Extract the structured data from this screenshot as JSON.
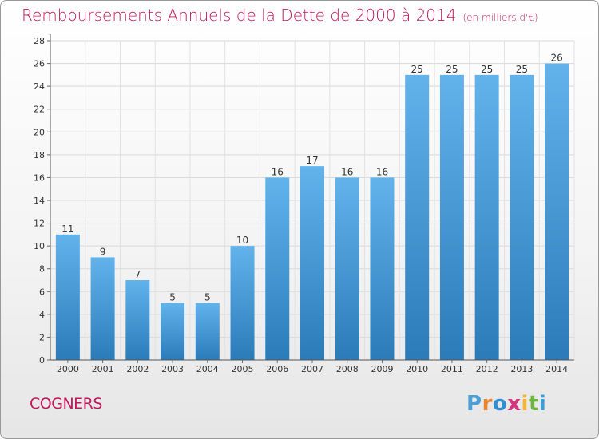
{
  "title": "Remboursements Annuels de la Dette de 2000 à 2014",
  "unit": "(en milliers d'€)",
  "place": "COGNERS",
  "logo": {
    "letters": [
      "P",
      "r",
      "o",
      "x",
      "i",
      "t",
      "i"
    ],
    "colors": [
      "#4a9fd6",
      "#e8862c",
      "#2f8fd0",
      "#d6347e",
      "#f1b634",
      "#6db43e",
      "#3aa0d8"
    ]
  },
  "colors": {
    "bar_top": "#62b3ec",
    "bar_bottom": "#2a7bb8",
    "title": "#c2185b"
  },
  "chart_data": {
    "type": "bar",
    "categories": [
      "2000",
      "2001",
      "2002",
      "2003",
      "2004",
      "2005",
      "2006",
      "2007",
      "2008",
      "2009",
      "2010",
      "2011",
      "2012",
      "2013",
      "2014"
    ],
    "values": [
      11,
      9,
      7,
      5,
      5,
      10,
      16,
      17,
      16,
      16,
      25,
      25,
      25,
      25,
      26
    ],
    "ylim": [
      0,
      28
    ],
    "yticks": [
      0,
      2,
      4,
      6,
      8,
      10,
      12,
      14,
      16,
      18,
      20,
      22,
      24,
      26,
      28
    ],
    "grid": true,
    "xlabel": "",
    "ylabel": ""
  }
}
